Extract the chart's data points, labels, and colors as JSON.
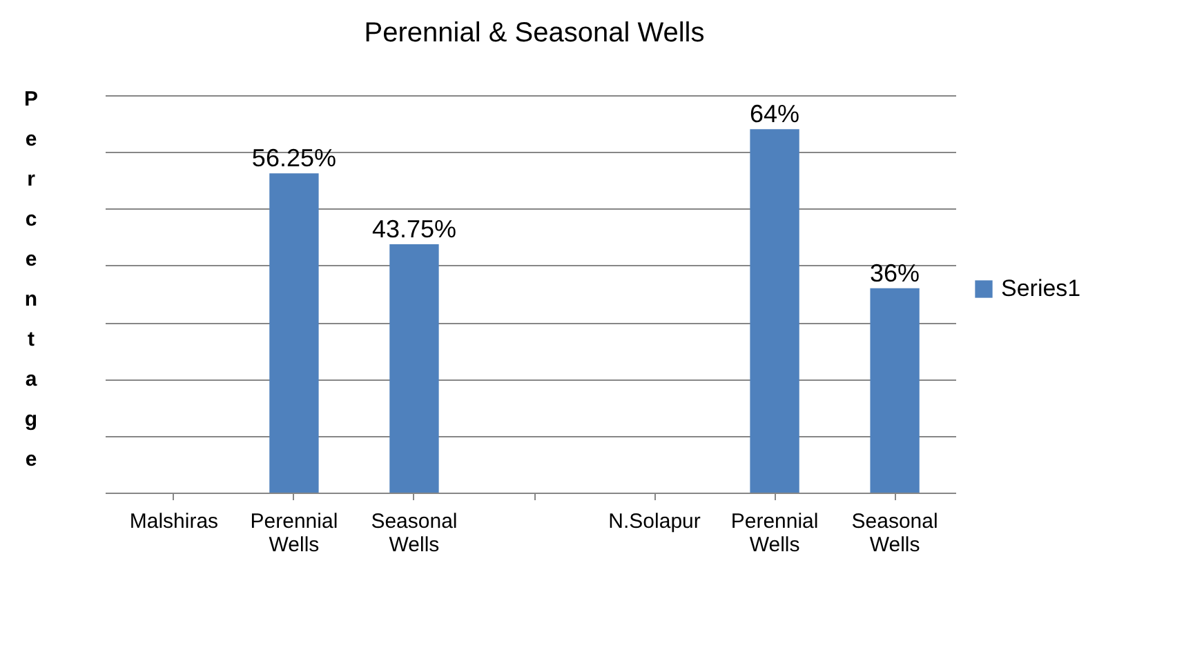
{
  "chart_data": {
    "type": "bar",
    "title": "Perennial  &  Seasonal Wells",
    "ylabel": "Percentage",
    "categories": [
      "Malshiras",
      "Perennial Wells",
      "Seasonal Wells",
      null,
      "N.Solapur",
      "Perennial Wells",
      "Seasonal Wells"
    ],
    "series": [
      {
        "name": "Series1",
        "color": "#4f81bd",
        "values": [
          null,
          56.25,
          43.75,
          null,
          null,
          64,
          36
        ],
        "value_labels": [
          null,
          "56.25%",
          "43.75%",
          null,
          null,
          "64%",
          "36%"
        ]
      }
    ],
    "relative": false,
    "ylim": [
      0,
      70
    ],
    "yticks": [
      {
        "value": 0,
        "label": null
      },
      {
        "value": 10,
        "label": null
      },
      {
        "value": 20,
        "label": null
      },
      {
        "value": 30,
        "label": null
      },
      {
        "value": 40,
        "label": null
      },
      {
        "value": 50,
        "label": null
      },
      {
        "value": 60,
        "label": null
      },
      {
        "value": 70,
        "label": null
      }
    ],
    "tick_labels": "x",
    "grid": "y",
    "legend": "right"
  }
}
